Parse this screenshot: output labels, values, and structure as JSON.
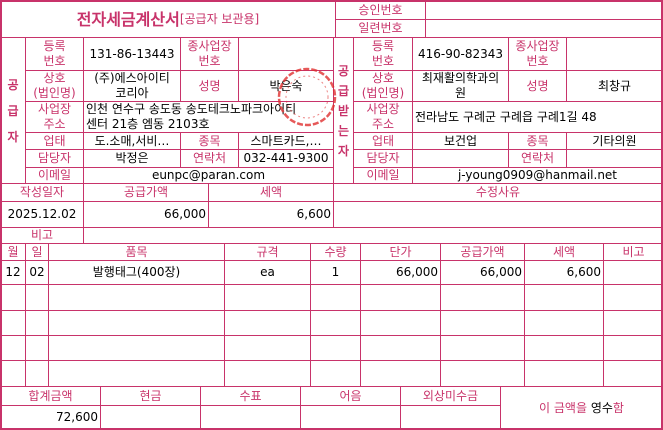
{
  "header": {
    "title": "전자세금계산서",
    "subtitle": "[공급자 보관용]",
    "approval_label": "승인번호",
    "approval_value": "",
    "serial_label": "일련번호",
    "serial_value": ""
  },
  "labels": {
    "reg_no": "등록\n번호",
    "sub_no": "종사업장\n번호",
    "company": "상호\n(법인명)",
    "name": "성명",
    "address": "사업장\n주소",
    "biz_type": "업태",
    "biz_item": "종목",
    "contact_person": "담당자",
    "phone": "연락처",
    "email": "이메일"
  },
  "supplier": {
    "side_label": [
      "공",
      "급",
      "자"
    ],
    "reg_no": "131-86-13443",
    "sub_no": "",
    "company": "(주)에스아이티\n코리아",
    "name": "박은숙",
    "address": "인천 연수구 송도동 송도테크노파크아이티\n센터 21층 엠동 2103호",
    "biz_type": "도.소매,서비…",
    "biz_item": "스마트카드,…",
    "contact_person": "박정은",
    "phone": "032-441-9300",
    "email": "eunpc@paran.com"
  },
  "receiver": {
    "side_label": [
      "공",
      "급",
      "받",
      "는",
      "자"
    ],
    "reg_no": "416-90-82343",
    "sub_no": "",
    "company": "최재활의학과의\n원",
    "name": "최창규",
    "address": "전라남도 구례군 구례읍 구례1길 48",
    "biz_type": "보건업",
    "biz_item": "기타의원",
    "contact_person": "",
    "phone": "",
    "email": "j-young0909@hanmail.net"
  },
  "summary": {
    "headers": [
      "작성일자",
      "공급가액",
      "세액",
      "수정사유"
    ],
    "date": "2025.12.02",
    "supply": "66,000",
    "tax": "6,600",
    "reason": "",
    "note_label": "비고",
    "note": ""
  },
  "items": {
    "headers": [
      "월",
      "일",
      "품목",
      "규격",
      "수량",
      "단가",
      "공급가액",
      "세액",
      "비고"
    ],
    "rows": [
      [
        "12",
        "02",
        "발행태그(400장)",
        "ea",
        "1",
        "66,000",
        "66,000",
        "6,600",
        ""
      ]
    ]
  },
  "totals": {
    "headers": [
      "합계금액",
      "현금",
      "수표",
      "어음",
      "외상미수금"
    ],
    "values": [
      "72,600",
      "",
      "",
      "",
      ""
    ],
    "receipt_prefix": "이 금액을 ",
    "receipt_mark": "영수",
    "receipt_suffix": "함"
  },
  "colors": {
    "accent": "#c8336a",
    "stamp": "#e03030"
  }
}
